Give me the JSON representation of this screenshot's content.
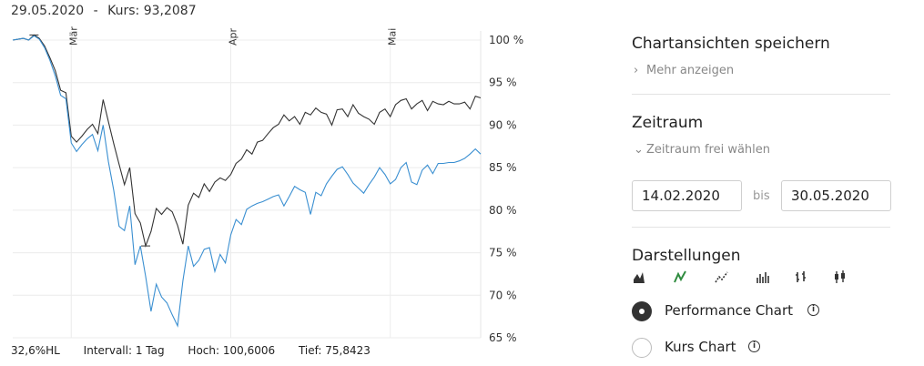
{
  "header": {
    "date": "29.05.2020",
    "separator": "-",
    "kurs": "Kurs: 93,2087"
  },
  "footer": {
    "hl": "32,6%HL",
    "intervall": "Intervall: 1 Tag",
    "hoch": "Hoch: 100,6006",
    "tief": "Tief: 75,8423"
  },
  "panel": {
    "save_title": "Chartansichten speichern",
    "more_label": "Mehr anzeigen",
    "period_title": "Zeitraum",
    "period_link": "Zeitraum frei wählen",
    "from_date": "14.02.2020",
    "bis": "bis",
    "to_date": "30.05.2020",
    "display_title": "Darstellungen",
    "chart_types": [
      "area-chart-icon",
      "line-chart-icon",
      "dotted-line-icon",
      "bar-chart-icon",
      "ohlc-icon",
      "candlestick-icon"
    ],
    "selected_chart_type": 1,
    "accent_color": "#2e8b3e",
    "options": [
      {
        "label": "Performance Chart",
        "checked": true
      },
      {
        "label": "Kurs Chart",
        "checked": false
      }
    ]
  },
  "chart_data": {
    "type": "line",
    "x_ticks": [
      "Mär",
      "Apr",
      "Mai"
    ],
    "y_ticks": [
      "100 %",
      "95 %",
      "90 %",
      "85 %",
      "80 %",
      "75 %",
      "70 %",
      "65 %"
    ],
    "ylim": [
      65,
      100
    ],
    "grid": true,
    "series": [
      {
        "color": "#333333",
        "values": [
          100.0,
          100.1,
          100.2,
          100.0,
          100.6,
          100.2,
          99.3,
          97.9,
          96.4,
          94.1,
          93.8,
          88.7,
          88.0,
          88.7,
          89.5,
          90.1,
          89.0,
          93.0,
          90.4,
          87.8,
          85.4,
          83.0,
          85.0,
          79.6,
          78.5,
          75.8,
          77.5,
          80.2,
          79.5,
          80.3,
          79.8,
          78.2,
          76.0,
          80.6,
          82.0,
          81.5,
          83.1,
          82.2,
          83.3,
          83.8,
          83.5,
          84.2,
          85.5,
          86.0,
          87.1,
          86.6,
          88.0,
          88.2,
          89.0,
          89.7,
          90.1,
          91.2,
          90.5,
          91.0,
          90.1,
          91.5,
          91.2,
          92.0,
          91.5,
          91.3,
          90.0,
          91.8,
          91.9,
          91.0,
          92.4,
          91.4,
          91.0,
          90.7,
          90.1,
          91.5,
          91.9,
          91.0,
          92.4,
          92.9,
          93.1,
          91.9,
          92.5,
          92.9,
          91.7,
          92.8,
          92.5,
          92.4,
          92.8,
          92.5,
          92.5,
          92.7,
          91.9,
          93.4,
          93.2
        ]
      },
      {
        "color": "#3a8fd1",
        "values": [
          100.0,
          100.1,
          100.2,
          100.0,
          100.5,
          100.1,
          99.1,
          97.6,
          95.8,
          93.5,
          93.1,
          87.9,
          86.9,
          87.7,
          88.4,
          88.9,
          87.0,
          90.0,
          85.7,
          82.3,
          78.1,
          77.6,
          80.5,
          73.6,
          75.8,
          72.2,
          68.1,
          71.3,
          69.8,
          69.1,
          67.7,
          66.4,
          71.7,
          75.8,
          73.4,
          74.1,
          75.4,
          75.6,
          72.8,
          74.8,
          73.8,
          77.1,
          78.9,
          78.3,
          80.1,
          80.5,
          80.8,
          81.0,
          81.3,
          81.6,
          81.8,
          80.5,
          81.6,
          82.8,
          82.4,
          82.1,
          79.5,
          82.1,
          81.7,
          83.1,
          84.0,
          84.8,
          85.1,
          84.2,
          83.2,
          82.6,
          82.0,
          83.0,
          83.9,
          85.0,
          84.2,
          83.1,
          83.6,
          85.0,
          85.6,
          83.3,
          83.0,
          84.7,
          85.3,
          84.3,
          85.5,
          85.5,
          85.6,
          85.6,
          85.8,
          86.1,
          86.6,
          87.2,
          86.6
        ]
      }
    ]
  }
}
